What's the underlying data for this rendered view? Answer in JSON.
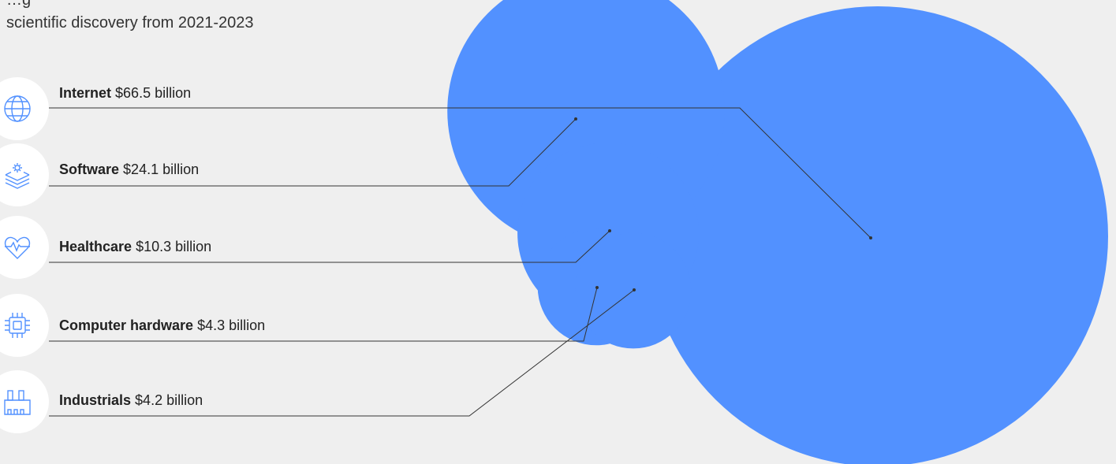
{
  "title_partial": "…g",
  "subtitle": "scientific discovery from 2021-2023",
  "colors": {
    "bubble": "#5291ff",
    "line": "#333333",
    "icon_stroke": "#5291ff"
  },
  "chart_data": {
    "type": "bubble",
    "unit": "billion",
    "categories": [
      "Internet",
      "Software",
      "Healthcare",
      "Computer hardware",
      "Industrials"
    ],
    "values": [
      66.5,
      24.1,
      10.3,
      4.3,
      4.2
    ],
    "labels": [
      {
        "name": "Internet",
        "value_text": "$66.5 billion",
        "icon": "globe-icon"
      },
      {
        "name": "Software",
        "value_text": "$24.1 billion",
        "icon": "gear-layers-icon"
      },
      {
        "name": "Healthcare",
        "value_text": "$10.3 billion",
        "icon": "heart-pulse-icon"
      },
      {
        "name": "Computer hardware",
        "value_text": "$4.3 billion",
        "icon": "chip-icon"
      },
      {
        "name": "Industrials",
        "value_text": "$4.2 billion",
        "icon": "factory-icon"
      }
    ]
  }
}
